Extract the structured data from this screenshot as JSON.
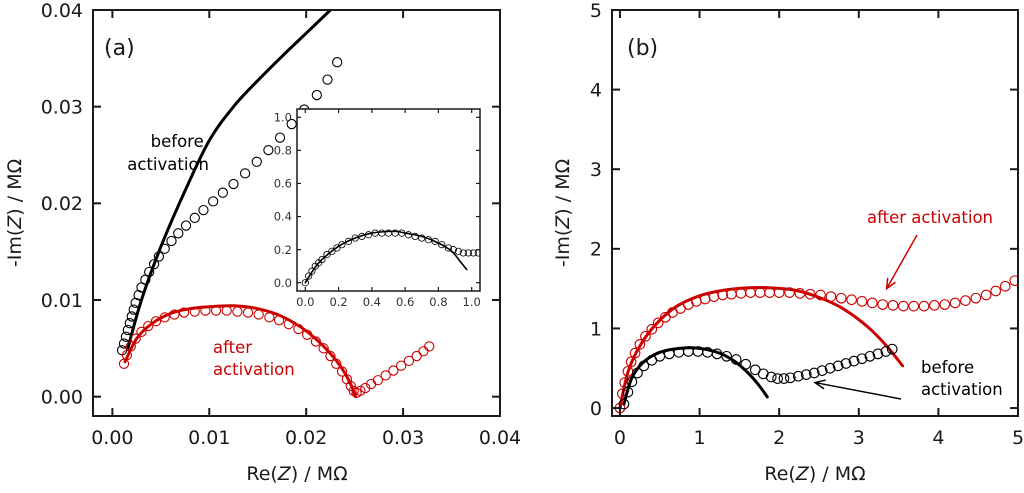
{
  "colors": {
    "before": "#000000",
    "after": "#cc0000",
    "axis": "#1a1a1a"
  },
  "chart_data": [
    {
      "id": "a",
      "type": "scatter",
      "panel_label": "(a)",
      "xlabel_pre": "Re(",
      "xlabel_var": "Z",
      "xlabel_post": ") / MΩ",
      "ylabel_pre": "-Im(",
      "ylabel_var": "Z",
      "ylabel_post": ") / MΩ",
      "xlim": [
        -0.002,
        0.04
      ],
      "ylim": [
        -0.002,
        0.04
      ],
      "xticks": [
        0.0,
        0.01,
        0.02,
        0.03,
        0.04
      ],
      "xtick_labels": [
        "0.00",
        "0.01",
        "0.02",
        "0.03",
        "0.04"
      ],
      "yticks": [
        0.0,
        0.01,
        0.02,
        0.03,
        0.04
      ],
      "ytick_labels": [
        "0.00",
        "0.01",
        "0.02",
        "0.03",
        "0.04"
      ],
      "annotations": [
        {
          "text_lines": [
            "before",
            "activation"
          ],
          "series": "before",
          "position": "upper-left"
        },
        {
          "text_lines": [
            "after",
            "activation"
          ],
          "series": "after",
          "position": "center"
        }
      ],
      "series": [
        {
          "name": "before activation (data)",
          "kind": "markers",
          "color": "before",
          "x": [
            0.001,
            0.0012,
            0.0014,
            0.0016,
            0.0018,
            0.002,
            0.0022,
            0.0024,
            0.0027,
            0.003,
            0.0034,
            0.0038,
            0.0043,
            0.0048,
            0.0054,
            0.0061,
            0.0068,
            0.0076,
            0.0085,
            0.0094,
            0.0104,
            0.0114,
            0.0125,
            0.0137,
            0.0149,
            0.0161,
            0.0173,
            0.0185,
            0.0198,
            0.0211,
            0.0222,
            0.0232
          ],
          "y": [
            0.0048,
            0.0055,
            0.0062,
            0.0069,
            0.0076,
            0.0083,
            0.009,
            0.0097,
            0.0105,
            0.0113,
            0.0121,
            0.0129,
            0.0137,
            0.0145,
            0.0153,
            0.0161,
            0.0169,
            0.0177,
            0.0185,
            0.0193,
            0.0202,
            0.0211,
            0.022,
            0.0231,
            0.0243,
            0.0255,
            0.0268,
            0.0282,
            0.0297,
            0.0312,
            0.0328,
            0.0346
          ]
        },
        {
          "name": "before activation (fit)",
          "kind": "line",
          "color": "before",
          "x": [
            0.0016,
            0.003,
            0.005,
            0.0075,
            0.01,
            0.0125,
            0.015,
            0.0175,
            0.02,
            0.0225
          ],
          "y": [
            0.005,
            0.01,
            0.0155,
            0.0213,
            0.0265,
            0.03,
            0.0327,
            0.0352,
            0.0376,
            0.04
          ]
        },
        {
          "name": "after activation (data)",
          "kind": "markers",
          "color": "after",
          "x": [
            0.0012,
            0.0015,
            0.0019,
            0.0024,
            0.003,
            0.0037,
            0.0045,
            0.0054,
            0.0064,
            0.0074,
            0.0085,
            0.0096,
            0.0107,
            0.0118,
            0.0129,
            0.014,
            0.0151,
            0.0162,
            0.0172,
            0.0182,
            0.0192,
            0.0201,
            0.021,
            0.0218,
            0.0225,
            0.0231,
            0.0237,
            0.0242,
            0.0246,
            0.0249,
            0.0252,
            0.0256,
            0.0261,
            0.0267,
            0.0274,
            0.0282,
            0.029,
            0.0298,
            0.0306,
            0.0314,
            0.0321,
            0.0327
          ],
          "y": [
            0.0034,
            0.0043,
            0.0052,
            0.006,
            0.0067,
            0.0073,
            0.0078,
            0.0082,
            0.0085,
            0.0087,
            0.0088,
            0.0089,
            0.0089,
            0.0089,
            0.0088,
            0.0087,
            0.0085,
            0.0082,
            0.0079,
            0.0075,
            0.007,
            0.0064,
            0.0057,
            0.005,
            0.0042,
            0.0034,
            0.0026,
            0.0018,
            0.0011,
            0.0006,
            0.0004,
            0.0006,
            0.0009,
            0.0013,
            0.0017,
            0.0022,
            0.0027,
            0.0032,
            0.0037,
            0.0042,
            0.0047,
            0.0052
          ]
        },
        {
          "name": "after activation (fit)",
          "kind": "line",
          "color": "after",
          "x": [
            0.0013,
            0.0025,
            0.004,
            0.006,
            0.008,
            0.01,
            0.0125,
            0.015,
            0.0175,
            0.02,
            0.022,
            0.0235,
            0.0245,
            0.0251
          ],
          "y": [
            0.0036,
            0.006,
            0.0075,
            0.0086,
            0.0091,
            0.0093,
            0.0094,
            0.0091,
            0.0083,
            0.0068,
            0.005,
            0.0032,
            0.0015,
            0.0
          ]
        }
      ],
      "inset": {
        "xlim": [
          -0.05,
          1.05
        ],
        "ylim": [
          -0.05,
          1.05
        ],
        "xticks": [
          0.0,
          0.2,
          0.4,
          0.6,
          0.8,
          1.0
        ],
        "xtick_labels": [
          "0.0",
          "0.2",
          "0.4",
          "0.6",
          "0.8",
          "1.0"
        ],
        "yticks": [
          0.0,
          0.2,
          0.4,
          0.6,
          0.8,
          1.0
        ],
        "ytick_labels": [
          "0.0",
          "0.2",
          "0.4",
          "0.6",
          "0.8",
          "1.0"
        ],
        "series": [
          {
            "name": "before activation (data)",
            "kind": "markers",
            "color": "before",
            "x": [
              0.0,
              0.02,
              0.04,
              0.06,
              0.08,
              0.1,
              0.13,
              0.16,
              0.19,
              0.22,
              0.26,
              0.3,
              0.34,
              0.38,
              0.42,
              0.46,
              0.5,
              0.54,
              0.58,
              0.62,
              0.66,
              0.7,
              0.74,
              0.78,
              0.82,
              0.86,
              0.89,
              0.92,
              0.95,
              0.98,
              1.01,
              1.04
            ],
            "y": [
              0.0,
              0.04,
              0.07,
              0.1,
              0.12,
              0.14,
              0.17,
              0.19,
              0.21,
              0.23,
              0.25,
              0.27,
              0.28,
              0.29,
              0.3,
              0.3,
              0.3,
              0.3,
              0.3,
              0.29,
              0.28,
              0.27,
              0.26,
              0.25,
              0.23,
              0.21,
              0.2,
              0.19,
              0.18,
              0.18,
              0.18,
              0.18
            ]
          },
          {
            "name": "before activation (fit)",
            "kind": "line",
            "color": "before",
            "x": [
              0.0,
              0.05,
              0.1,
              0.2,
              0.3,
              0.4,
              0.5,
              0.55,
              0.6,
              0.7,
              0.8,
              0.88,
              0.93,
              0.97
            ],
            "y": [
              0.0,
              0.08,
              0.14,
              0.22,
              0.27,
              0.3,
              0.31,
              0.31,
              0.3,
              0.28,
              0.24,
              0.19,
              0.13,
              0.08
            ]
          }
        ]
      }
    },
    {
      "id": "b",
      "type": "scatter",
      "panel_label": "(b)",
      "xlabel_pre": "Re(",
      "xlabel_var": "Z",
      "xlabel_post": ") / MΩ",
      "ylabel_pre": "-Im(",
      "ylabel_var": "Z",
      "ylabel_post": ") / MΩ",
      "xlim": [
        -0.1,
        5
      ],
      "ylim": [
        -0.1,
        5
      ],
      "xticks": [
        0,
        1,
        2,
        3,
        4,
        5
      ],
      "xtick_labels": [
        "0",
        "1",
        "2",
        "3",
        "4",
        "5"
      ],
      "yticks": [
        0,
        1,
        2,
        3,
        4,
        5
      ],
      "ytick_labels": [
        "0",
        "1",
        "2",
        "3",
        "4",
        "5"
      ],
      "annotations": [
        {
          "text_lines": [
            "after activation"
          ],
          "series": "after",
          "position": "upper-right",
          "arrow_to": [
            3.35,
            1.5
          ]
        },
        {
          "text_lines": [
            "before",
            "activation"
          ],
          "series": "before",
          "position": "lower-right",
          "arrow_to": [
            2.45,
            0.32
          ]
        }
      ],
      "series": [
        {
          "name": "after activation (data)",
          "kind": "markers",
          "color": "after",
          "x": [
            0.0,
            0.03,
            0.06,
            0.1,
            0.14,
            0.19,
            0.25,
            0.32,
            0.4,
            0.48,
            0.57,
            0.66,
            0.76,
            0.86,
            0.96,
            1.07,
            1.18,
            1.29,
            1.4,
            1.52,
            1.64,
            1.76,
            1.88,
            2.0,
            2.13,
            2.26,
            2.39,
            2.52,
            2.65,
            2.78,
            2.91,
            3.04,
            3.17,
            3.3,
            3.43,
            3.56,
            3.69,
            3.82,
            3.95,
            4.08,
            4.21,
            4.34,
            4.47,
            4.6,
            4.72,
            4.84,
            4.96
          ],
          "y": [
            0.0,
            0.18,
            0.32,
            0.46,
            0.58,
            0.69,
            0.8,
            0.9,
            0.99,
            1.07,
            1.14,
            1.2,
            1.25,
            1.3,
            1.34,
            1.37,
            1.4,
            1.42,
            1.43,
            1.44,
            1.45,
            1.45,
            1.45,
            1.45,
            1.45,
            1.44,
            1.43,
            1.42,
            1.4,
            1.38,
            1.36,
            1.34,
            1.32,
            1.3,
            1.29,
            1.28,
            1.28,
            1.28,
            1.29,
            1.3,
            1.32,
            1.35,
            1.38,
            1.42,
            1.47,
            1.53,
            1.6
          ]
        },
        {
          "name": "after activation (fit)",
          "kind": "line",
          "color": "after",
          "x": [
            0.0,
            0.1,
            0.25,
            0.45,
            0.7,
            1.0,
            1.3,
            1.6,
            1.9,
            2.2,
            2.5,
            2.8,
            3.1,
            3.35,
            3.55
          ],
          "y": [
            0.0,
            0.45,
            0.78,
            1.05,
            1.27,
            1.41,
            1.48,
            1.51,
            1.51,
            1.48,
            1.39,
            1.25,
            1.03,
            0.78,
            0.53
          ]
        },
        {
          "name": "before activation (data)",
          "kind": "markers",
          "color": "before",
          "x": [
            0.05,
            0.1,
            0.15,
            0.22,
            0.3,
            0.4,
            0.5,
            0.62,
            0.74,
            0.86,
            0.98,
            1.1,
            1.22,
            1.34,
            1.46,
            1.58,
            1.7,
            1.8,
            1.9,
            1.98,
            2.06,
            2.14,
            2.24,
            2.34,
            2.44,
            2.54,
            2.64,
            2.74,
            2.84,
            2.94,
            3.04,
            3.14,
            3.24,
            3.34,
            3.42
          ],
          "y": [
            0.05,
            0.2,
            0.33,
            0.44,
            0.53,
            0.6,
            0.65,
            0.68,
            0.7,
            0.71,
            0.71,
            0.7,
            0.68,
            0.65,
            0.61,
            0.55,
            0.48,
            0.43,
            0.39,
            0.37,
            0.37,
            0.38,
            0.4,
            0.42,
            0.44,
            0.47,
            0.5,
            0.53,
            0.56,
            0.59,
            0.62,
            0.65,
            0.68,
            0.71,
            0.74
          ]
        },
        {
          "name": "before activation (fit)",
          "kind": "line",
          "color": "before",
          "x": [
            0.05,
            0.15,
            0.3,
            0.5,
            0.75,
            1.0,
            1.25,
            1.45,
            1.62,
            1.75,
            1.85
          ],
          "y": [
            0.05,
            0.38,
            0.58,
            0.7,
            0.75,
            0.75,
            0.69,
            0.58,
            0.43,
            0.28,
            0.14
          ]
        }
      ]
    }
  ]
}
